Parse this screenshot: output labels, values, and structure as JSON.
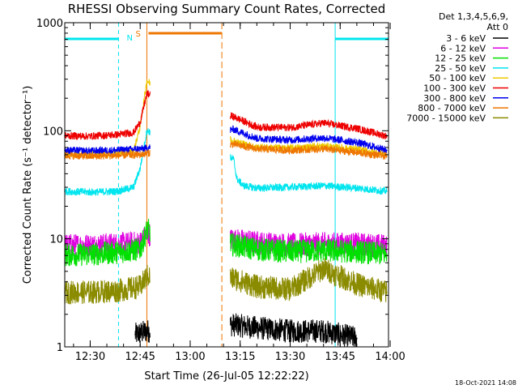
{
  "chart_data": {
    "type": "line",
    "title": "RHESSI Observing Summary Count Rates, Corrected",
    "xlabel": "Start Time (26-Jul-05 12:22:22)",
    "ylabel": "Corrected Count Rate (s⁻¹ detector⁻¹)",
    "yscale": "log",
    "ylim": [
      1,
      1000
    ],
    "xlim": [
      "12:22:22",
      "13:59:30"
    ],
    "x_ticks": [
      "12:30",
      "12:45",
      "13:00",
      "13:15",
      "13:30",
      "13:45",
      "14:00"
    ],
    "y_ticks": [
      "1",
      "10",
      "100",
      "1000"
    ],
    "grid": false,
    "legend_position": "right",
    "legend_header": [
      "Det 1,3,4,5,6,9,",
      "Att 0"
    ],
    "timestamp": "18-Oct-2021 14:08",
    "flag_labels": {
      "night": "N",
      "saa": "S"
    },
    "flags": {
      "night": [
        [
          "12:22:22",
          "12:38:30"
        ],
        [
          "13:43:30",
          "13:59:30"
        ]
      ],
      "saa": [
        [
          "12:47:00",
          "13:09:30"
        ]
      ]
    },
    "gaps": [
      [
        "12:48:00",
        "13:12:00"
      ]
    ],
    "series": [
      {
        "name": "3 - 6 keV",
        "color": "#000000",
        "x": [
          "12:43:30",
          "12:47:00",
          "13:13:00",
          "13:20:00",
          "13:30:00",
          "13:40:00",
          "13:50:00"
        ],
        "y": [
          1.3,
          1.4,
          1.6,
          1.5,
          1.4,
          1.4,
          1.2
        ]
      },
      {
        "name": "6 - 12 keV",
        "color": "#e000e0",
        "x": [
          "12:22:22",
          "12:30:00",
          "12:38:00",
          "12:45:00",
          "12:47:00",
          "13:13:00",
          "13:20:00",
          "13:30:00",
          "13:40:00",
          "13:50:00",
          "13:59:00"
        ],
        "y": [
          8.7,
          8.7,
          8.9,
          9.2,
          11.0,
          9.8,
          9.2,
          8.8,
          9.0,
          8.9,
          8.6
        ]
      },
      {
        "name": "12 - 25 keV",
        "color": "#00e000",
        "x": [
          "12:22:22",
          "12:30:00",
          "12:38:00",
          "12:45:00",
          "12:47:00",
          "13:13:00",
          "13:20:00",
          "13:30:00",
          "13:40:00",
          "13:50:00",
          "13:59:00"
        ],
        "y": [
          7.1,
          7.2,
          7.5,
          8.0,
          12.0,
          8.8,
          8.0,
          7.6,
          7.8,
          7.6,
          7.2
        ]
      },
      {
        "name": "25 - 50 keV",
        "color": "#00e5ee",
        "x": [
          "12:22:22",
          "12:30:00",
          "12:38:00",
          "12:43:00",
          "12:45:00",
          "12:47:00",
          "13:13:00",
          "13:14:00",
          "13:16:00",
          "13:20:00",
          "13:30:00",
          "13:40:00",
          "13:50:00",
          "13:59:00"
        ],
        "y": [
          27.5,
          27,
          27.5,
          30,
          45,
          100,
          55,
          36,
          31,
          29.5,
          30,
          31,
          29.5,
          27.5
        ]
      },
      {
        "name": "50 - 100 keV",
        "color": "#eec900",
        "x": [
          "12:22:22",
          "12:30:00",
          "12:38:00",
          "12:43:00",
          "12:45:00",
          "12:47:00",
          "13:13:00",
          "13:20:00",
          "13:30:00",
          "13:40:00",
          "13:50:00",
          "13:59:00"
        ],
        "y": [
          61,
          60,
          61,
          64,
          110,
          290,
          80,
          70,
          69,
          72,
          67,
          60
        ]
      },
      {
        "name": "100 - 300 keV",
        "color": "#ee0000",
        "x": [
          "12:22:22",
          "12:30:00",
          "12:38:00",
          "12:43:00",
          "12:45:00",
          "12:47:00",
          "13:13:00",
          "13:20:00",
          "13:30:00",
          "13:40:00",
          "13:50:00",
          "13:59:00"
        ],
        "y": [
          90,
          89,
          92,
          96,
          120,
          220,
          135,
          108,
          107,
          118,
          105,
          89
        ]
      },
      {
        "name": "300 - 800 keV",
        "color": "#0000ee",
        "x": [
          "12:22:22",
          "12:30:00",
          "12:38:00",
          "12:45:00",
          "12:47:00",
          "13:13:00",
          "13:20:00",
          "13:30:00",
          "13:40:00",
          "13:50:00",
          "13:59:00"
        ],
        "y": [
          66,
          65,
          66,
          68,
          69,
          103,
          85,
          82,
          86,
          78,
          66
        ]
      },
      {
        "name": "800 - 7000 keV",
        "color": "#ee7600",
        "x": [
          "12:22:22",
          "12:30:00",
          "12:38:00",
          "12:45:00",
          "12:47:00",
          "13:13:00",
          "13:20:00",
          "13:30:00",
          "13:40:00",
          "13:50:00",
          "13:59:00"
        ],
        "y": [
          59,
          58,
          59,
          60,
          62,
          75,
          68,
          66,
          68,
          63,
          58
        ]
      },
      {
        "name": "7000 - 15000 keV",
        "color": "#8b8b00",
        "x": [
          "12:22:22",
          "12:30:00",
          "12:38:00",
          "12:45:00",
          "12:47:00",
          "13:13:00",
          "13:20:00",
          "13:30:00",
          "13:40:00",
          "13:50:00",
          "13:59:00"
        ],
        "y": [
          3.2,
          3.2,
          3.3,
          3.6,
          4.5,
          4.3,
          3.6,
          3.4,
          5.3,
          3.8,
          3.2
        ]
      }
    ]
  }
}
